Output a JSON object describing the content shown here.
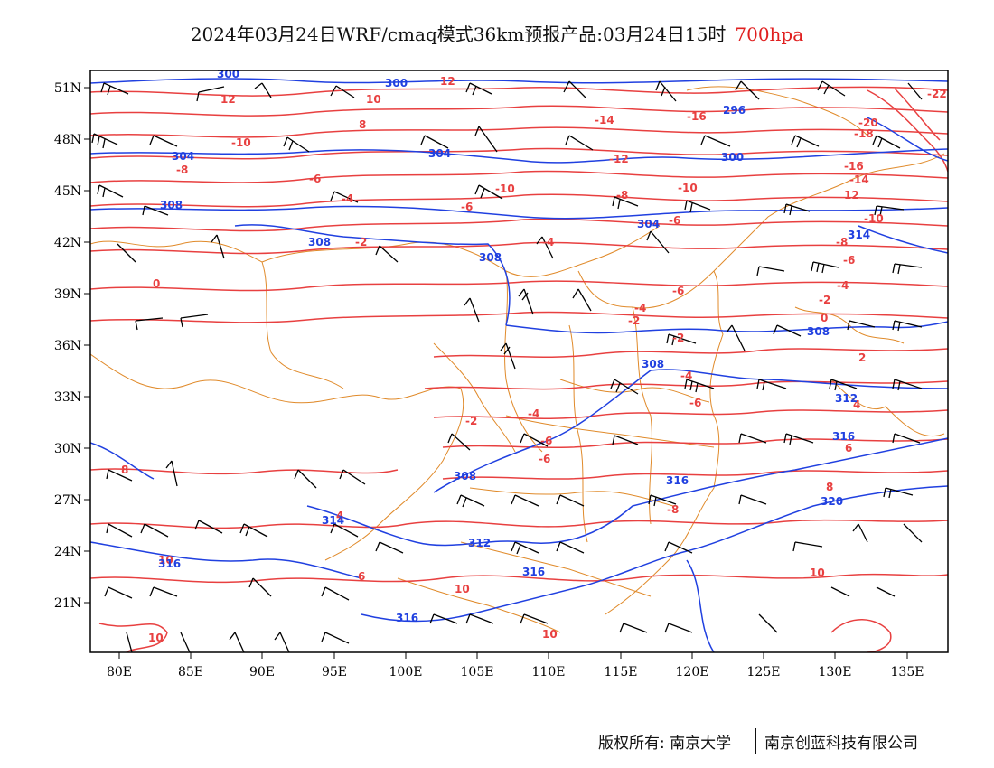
{
  "title": {
    "text": "2024年03月24日WRF/cmaq模式36km预报产品:03月24日15时",
    "level": "700hpa"
  },
  "axes": {
    "lon_labels": [
      "80E",
      "85E",
      "90E",
      "95E",
      "100E",
      "105E",
      "110E",
      "115E",
      "120E",
      "125E",
      "130E",
      "135E"
    ],
    "lat_labels": [
      "51N",
      "48N",
      "45N",
      "42N",
      "39N",
      "36N",
      "33N",
      "30N",
      "27N",
      "24N",
      "21N"
    ]
  },
  "footer": {
    "copyright": "版权所有: 南京大学",
    "company": "南京创蓝科技有限公司"
  },
  "colors": {
    "temperature_contour": "#e84040",
    "height_contour": "#2040e0",
    "boundaries": "#e08a2a",
    "wind_barbs": "#000000"
  },
  "temperature_labels": [
    "-22",
    "-20",
    "-18",
    "-16",
    "-14",
    "-12",
    "-10",
    "-8",
    "-6",
    "-4",
    "-2",
    "0",
    "2",
    "4",
    "6",
    "8",
    "10",
    "12"
  ],
  "height_labels": [
    "296",
    "300",
    "304",
    "308",
    "312",
    "316",
    "320"
  ]
}
